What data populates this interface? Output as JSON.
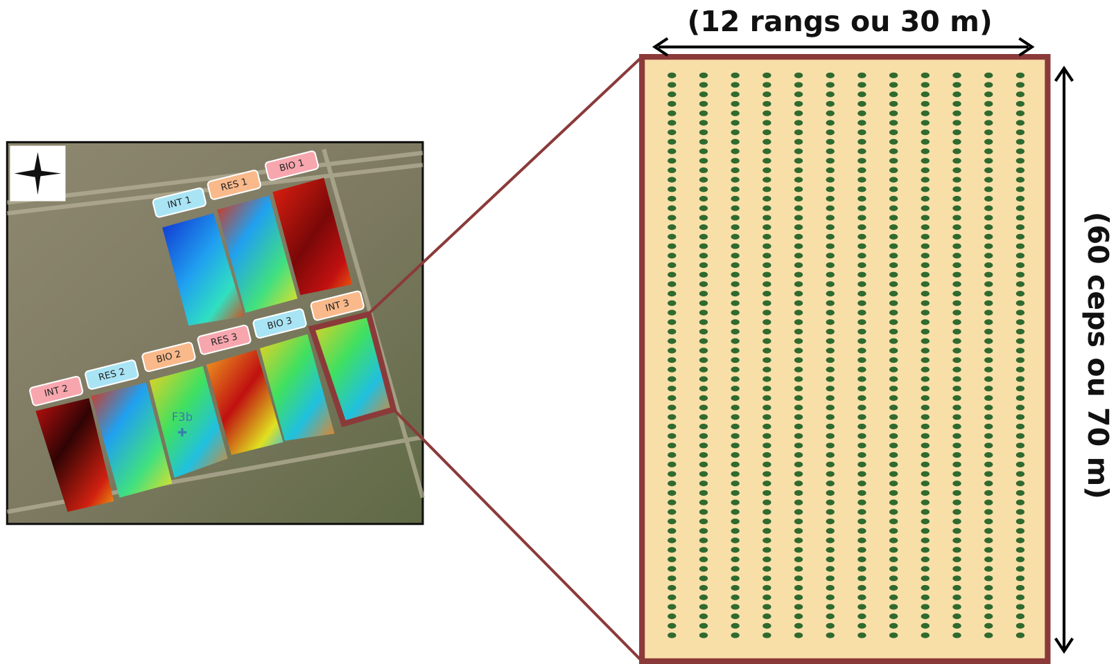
{
  "plots": [
    {
      "label": "INT 1"
    },
    {
      "label": "RES 1"
    },
    {
      "label": "BIO 1"
    },
    {
      "label": "INT 2"
    },
    {
      "label": "RES 2"
    },
    {
      "label": "BIO 2"
    },
    {
      "label": "RES 3"
    },
    {
      "label": "BIO 3"
    },
    {
      "label": "INT 3"
    }
  ],
  "marker": "F3b",
  "zoom": {
    "width_label": "(12 rangs ou 30 m)",
    "height_label": "(60 ceps ou 70 m)"
  }
}
